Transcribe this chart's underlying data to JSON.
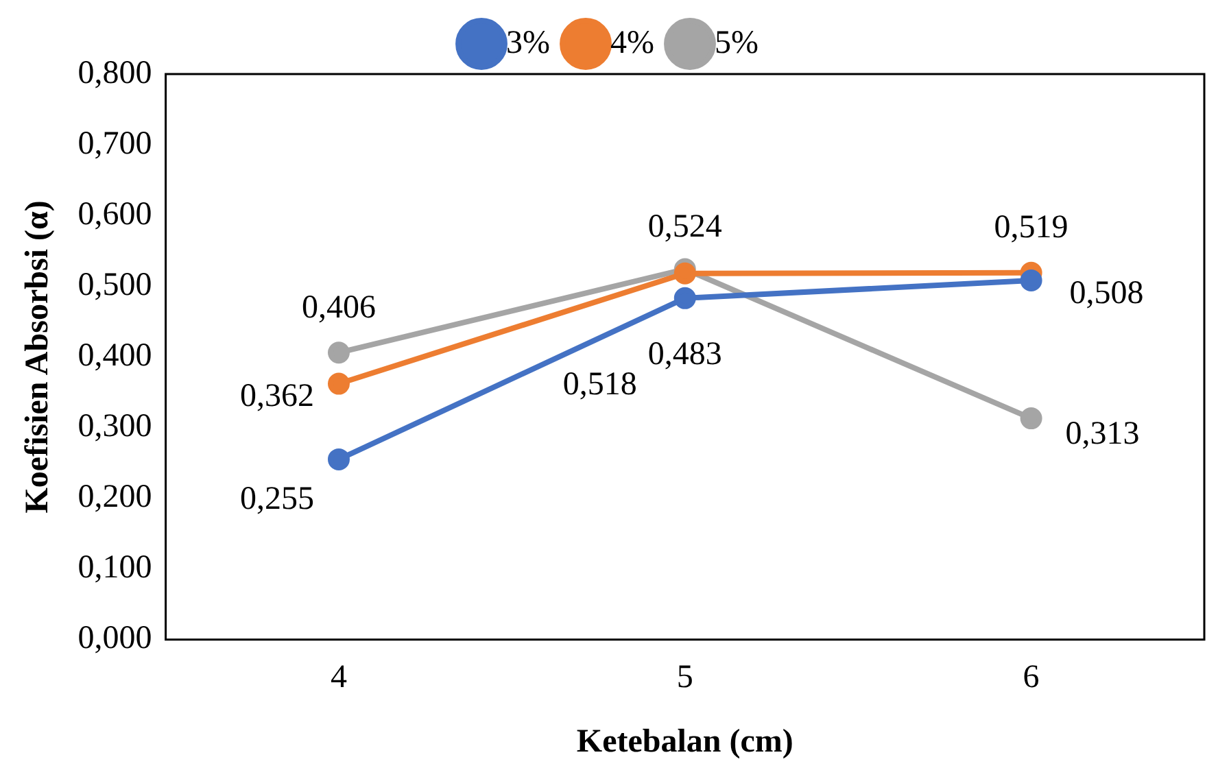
{
  "chart_data": {
    "type": "line",
    "xlabel": "Ketebalan (cm)",
    "ylabel": "Koefisien Absorbsi (α)",
    "categories": [
      "4",
      "5",
      "6"
    ],
    "series": [
      {
        "name": "3%",
        "color": "#4472c4",
        "values": [
          0.255,
          0.483,
          0.508
        ],
        "value_labels": [
          "0,255",
          "0,483",
          "0,508"
        ]
      },
      {
        "name": "4%",
        "color": "#ed7d31",
        "values": [
          0.362,
          0.518,
          0.519
        ],
        "value_labels": [
          "0,362",
          "0,518",
          "0,519"
        ]
      },
      {
        "name": "5%",
        "color": "#a5a5a5",
        "values": [
          0.406,
          0.524,
          0.313
        ],
        "value_labels": [
          "0,406",
          "0,524",
          "0,313"
        ]
      }
    ],
    "ylim": [
      0,
      0.8
    ],
    "yticks": [
      {
        "value": 0,
        "label": "0,000"
      },
      {
        "value": 0.1,
        "label": "0,100"
      },
      {
        "value": 0.2,
        "label": "0,200"
      },
      {
        "value": 0.3,
        "label": "0,300"
      },
      {
        "value": 0.4,
        "label": "0,400"
      },
      {
        "value": 0.5,
        "label": "0,500"
      },
      {
        "value": 0.6,
        "label": "0,600"
      },
      {
        "value": 0.7,
        "label": "0,700"
      },
      {
        "value": 0.8,
        "label": "0,800"
      }
    ],
    "grid": false,
    "legend": "top",
    "marker": "circle",
    "line_style": "solid"
  }
}
